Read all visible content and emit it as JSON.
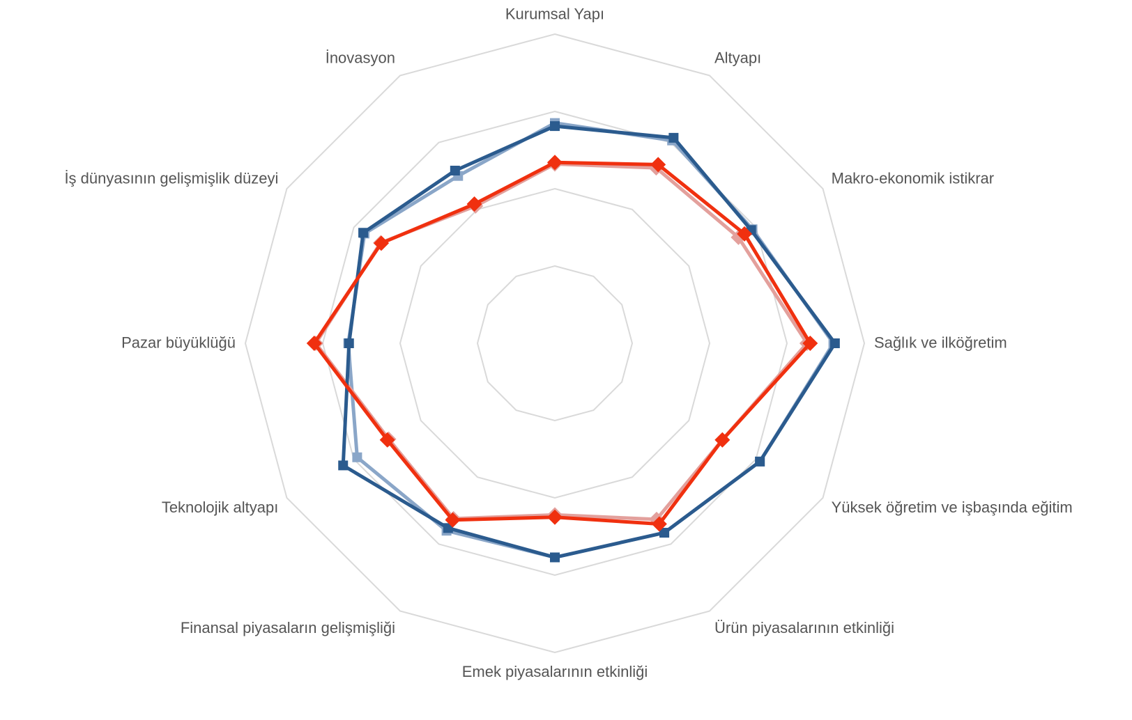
{
  "chart_data": {
    "type": "radar",
    "categories": [
      "Kurumsal Yapı",
      "Altyapı",
      "Makro-ekonomik istikrar",
      "Sağlık ve ilköğretim",
      "Yüksek öğretim ve işbaşında eğitim",
      "Ürün piyasalarının etkinliği",
      "Emek piyasalarının etkinliği",
      "Finansal piyasaların gelişmişliği",
      "Teknolojik altyapı",
      "Pazar büyüklüğü",
      "İş dünyasının gelişmişlik düzeyi",
      "İnovasyon"
    ],
    "rlim": [
      3,
      7
    ],
    "rticks": [
      3,
      4,
      5,
      6,
      7
    ],
    "grid": true,
    "series": [
      {
        "color": "#8aa6c8",
        "marker": "square",
        "values": [
          5.85,
          6.03,
          5.95,
          6.6,
          6.06,
          5.83,
          5.77,
          5.8,
          5.95,
          5.67,
          5.84,
          5.5
        ]
      },
      {
        "color": "#e3a09c",
        "marker": "diamond",
        "values": [
          5.32,
          5.62,
          5.74,
          6.26,
          5.5,
          5.63,
          5.22,
          5.62,
          5.48,
          6.09,
          5.6,
          5.05
        ]
      },
      {
        "color": "#2b5b8e",
        "marker": "square",
        "values": [
          5.81,
          6.07,
          5.93,
          6.62,
          6.06,
          5.83,
          5.77,
          5.76,
          6.16,
          5.66,
          5.86,
          5.58
        ]
      },
      {
        "color": "#f0300f",
        "marker": "diamond",
        "values": [
          5.34,
          5.67,
          5.83,
          6.3,
          5.5,
          5.7,
          5.25,
          5.64,
          5.5,
          6.11,
          5.59,
          5.08
        ]
      }
    ]
  }
}
